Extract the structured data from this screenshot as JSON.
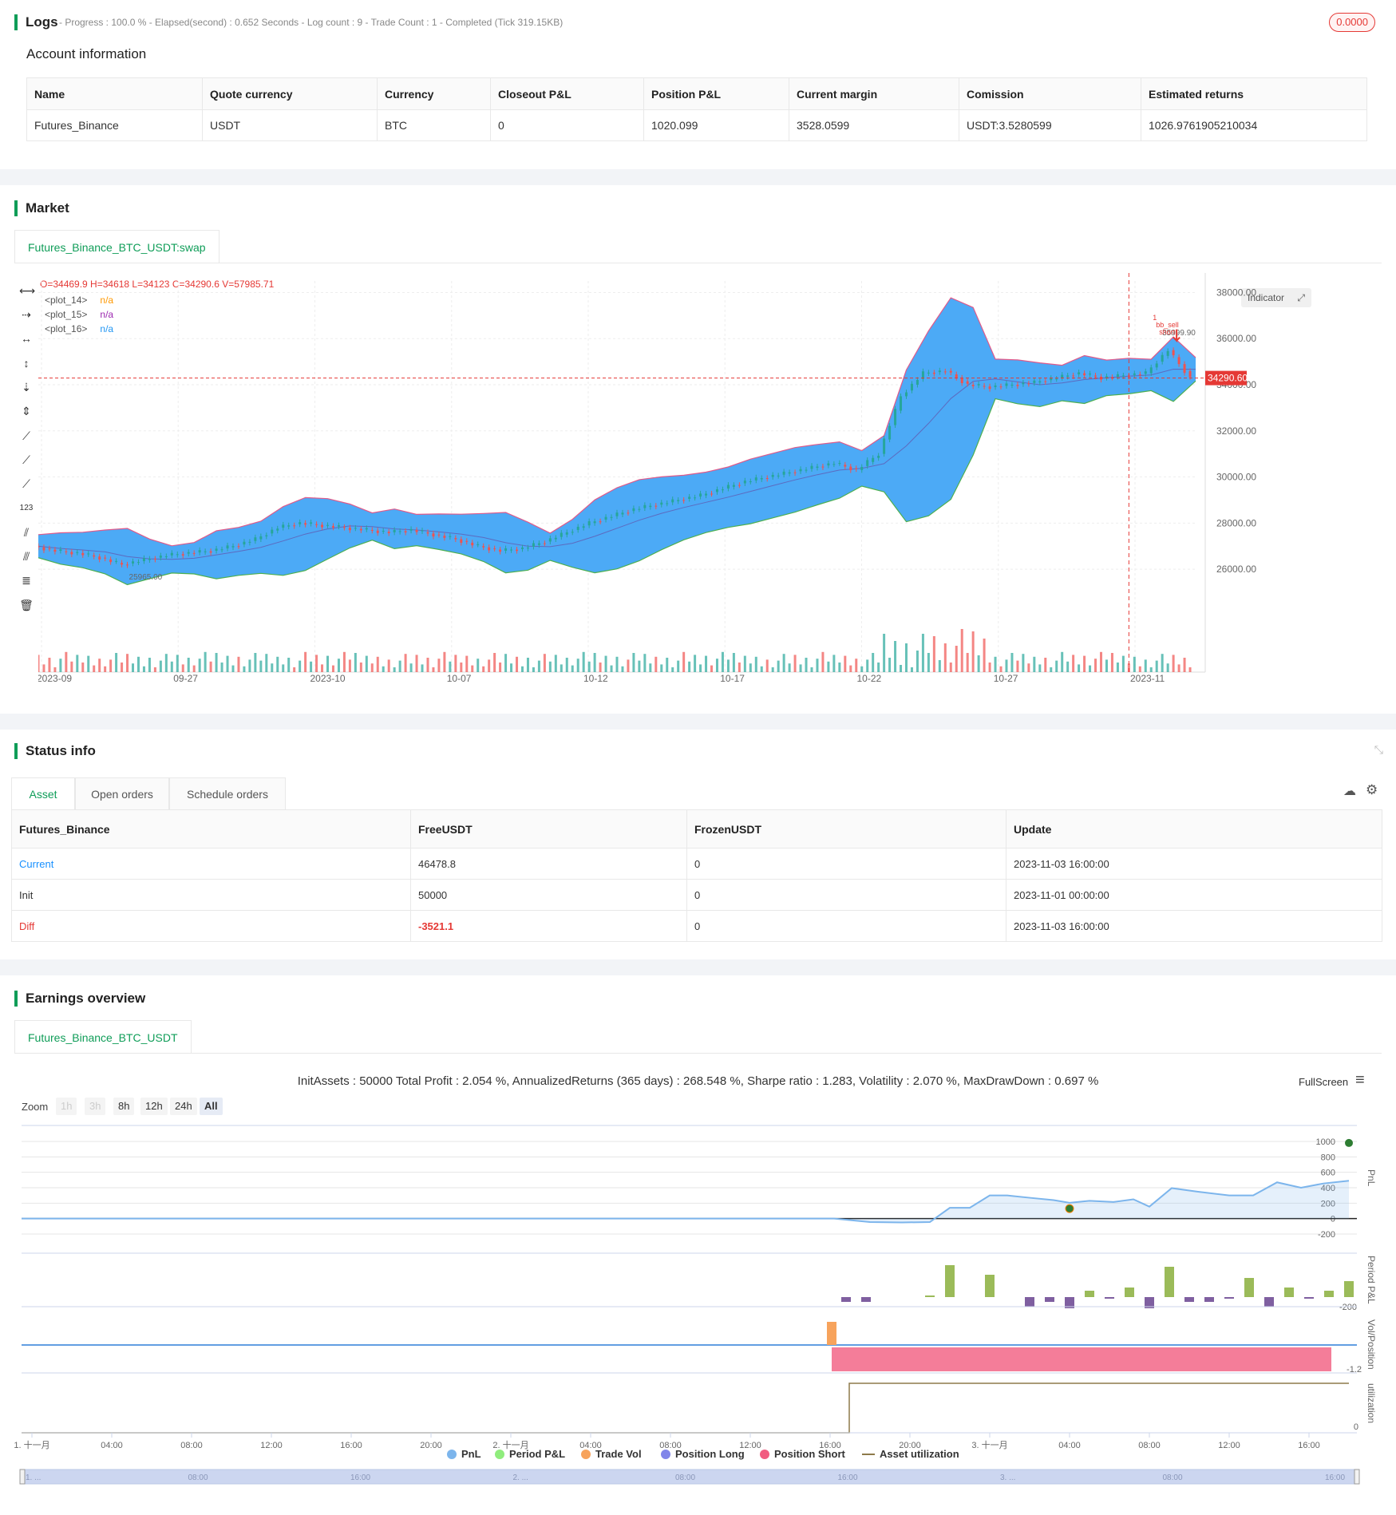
{
  "logs": {
    "title": "Logs",
    "summary": "- Progress : 100.0 % - Elapsed(second) : 0.652  Seconds - Log count : 9 - Trade Count : 1 - Completed (Tick 319.15KB)",
    "badge": "0.0000"
  },
  "account": {
    "title": "Account information",
    "headers": [
      "Name",
      "Quote currency",
      "Currency",
      "Closeout P&L",
      "Position P&L",
      "Current margin",
      "Comission",
      "Estimated returns"
    ],
    "row": [
      "Futures_Binance",
      "USDT",
      "BTC",
      "0",
      "1020.099",
      "3528.0599",
      "USDT:3.5280599",
      "1026.9761905210034"
    ]
  },
  "market": {
    "title": "Market",
    "tab": "Futures_Binance_BTC_USDT:swap",
    "ohlc": "O=34469.9 H=34618 L=34123 C=34290.6 V=57985.71",
    "plots": [
      {
        "name": "<plot_14>",
        "value": "n/a",
        "color": "#ff9800"
      },
      {
        "name": "<plot_15>",
        "value": "n/a",
        "color": "#9c27b0"
      },
      {
        "name": "<plot_16>",
        "value": "n/a",
        "color": "#2196f3"
      }
    ],
    "indicator_btn": "Indicator",
    "price_label": "34290.60",
    "low_label": "25965.00",
    "high_label": "35999.90",
    "signal_labels": [
      "1",
      "bb_sell",
      "short"
    ],
    "y_ticks": [
      "38000.00",
      "36000.00",
      "34000.00",
      "32000.00",
      "30000.00",
      "28000.00",
      "26000.00"
    ],
    "x_ticks": [
      "2023-09",
      "09-27",
      "2023-10",
      "10-07",
      "10-12",
      "10-17",
      "10-22",
      "10-27",
      "2023-11"
    ],
    "colors": {
      "band": "#42a5f5",
      "up": "#26a69a",
      "down": "#ef5350"
    }
  },
  "chart_data": {
    "type": "line",
    "title": "",
    "series": [
      {
        "name": "",
        "values": [
          27000,
          26800,
          26700,
          26500,
          26200,
          26400,
          26600,
          26700,
          26800,
          27000,
          27300,
          27800,
          28000,
          27900,
          27800,
          27700,
          27600,
          27700,
          27500,
          27300,
          27000,
          26800,
          26900,
          27200,
          27600,
          28000,
          28300,
          28600,
          28800,
          29000,
          29200,
          29500,
          29800,
          30000,
          30200,
          30400,
          30600,
          30300,
          31000,
          33500,
          34500,
          34600,
          34000,
          33900,
          34000,
          34100,
          34300,
          34500,
          34300,
          34400,
          34500,
          35500,
          34290.6
        ]
      }
    ],
    "ylim": [
      25000,
      38500
    ],
    "xlabel": "",
    "ylabel": ""
  },
  "status": {
    "title": "Status info",
    "tabs": [
      "Asset",
      "Open orders",
      "Schedule orders"
    ],
    "headers": [
      "Futures_Binance",
      "FreeUSDT",
      "FrozenUSDT",
      "Update"
    ],
    "rows": [
      {
        "label": "Current",
        "free": "46478.8",
        "frozen": "0",
        "update": "2023-11-03 16:00:00"
      },
      {
        "label": "Init",
        "free": "50000",
        "frozen": "0",
        "update": "2023-11-01 00:00:00"
      },
      {
        "label": "Diff",
        "free": "-3521.1",
        "frozen": "0",
        "update": "2023-11-03 16:00:00"
      }
    ]
  },
  "earnings": {
    "title": "Earnings overview",
    "tab": "Futures_Binance_BTC_USDT",
    "summary": "InitAssets : 50000 Total Profit : 2.054 %, AnnualizedReturns (365 days) : 268.548 %, Sharpe ratio : 1.283, Volatility : 2.070 %, MaxDrawDown : 0.697 %",
    "fullscreen": "FullScreen",
    "zoom_label": "Zoom",
    "zoom_buttons": [
      "1h",
      "3h",
      "8h",
      "12h",
      "24h",
      "All"
    ],
    "pnl_ticks": [
      "1000",
      "800",
      "600",
      "400",
      "200",
      "0",
      "-200"
    ],
    "axis_labels": [
      "PnL",
      "Period P&L",
      "Vol/Position",
      "utilization"
    ],
    "period_tick": "-200",
    "vol_tick": "-1.2",
    "util_tick": "0",
    "x_ticks": [
      "1. 十一月",
      "04:00",
      "08:00",
      "12:00",
      "16:00",
      "20:00",
      "2. 十一月",
      "04:00",
      "08:00",
      "12:00",
      "16:00",
      "20:00",
      "3. 十一月",
      "04:00",
      "08:00",
      "12:00",
      "16:00"
    ],
    "nav_ticks": [
      "1. ...",
      "08:00",
      "16:00",
      "2. ...",
      "08:00",
      "16:00",
      "3. ...",
      "08:00",
      "16:00"
    ],
    "legend": [
      {
        "label": "PnL",
        "color": "#7cb5ec"
      },
      {
        "label": "Period P&L",
        "color": "#90ed7d"
      },
      {
        "label": "Trade Vol",
        "color": "#f7a35c"
      },
      {
        "label": "Position Long",
        "color": "#8085e9"
      },
      {
        "label": "Position Short",
        "color": "#f15c80"
      },
      {
        "label": "Asset utilization",
        "color": "#8d7a4a"
      }
    ]
  }
}
